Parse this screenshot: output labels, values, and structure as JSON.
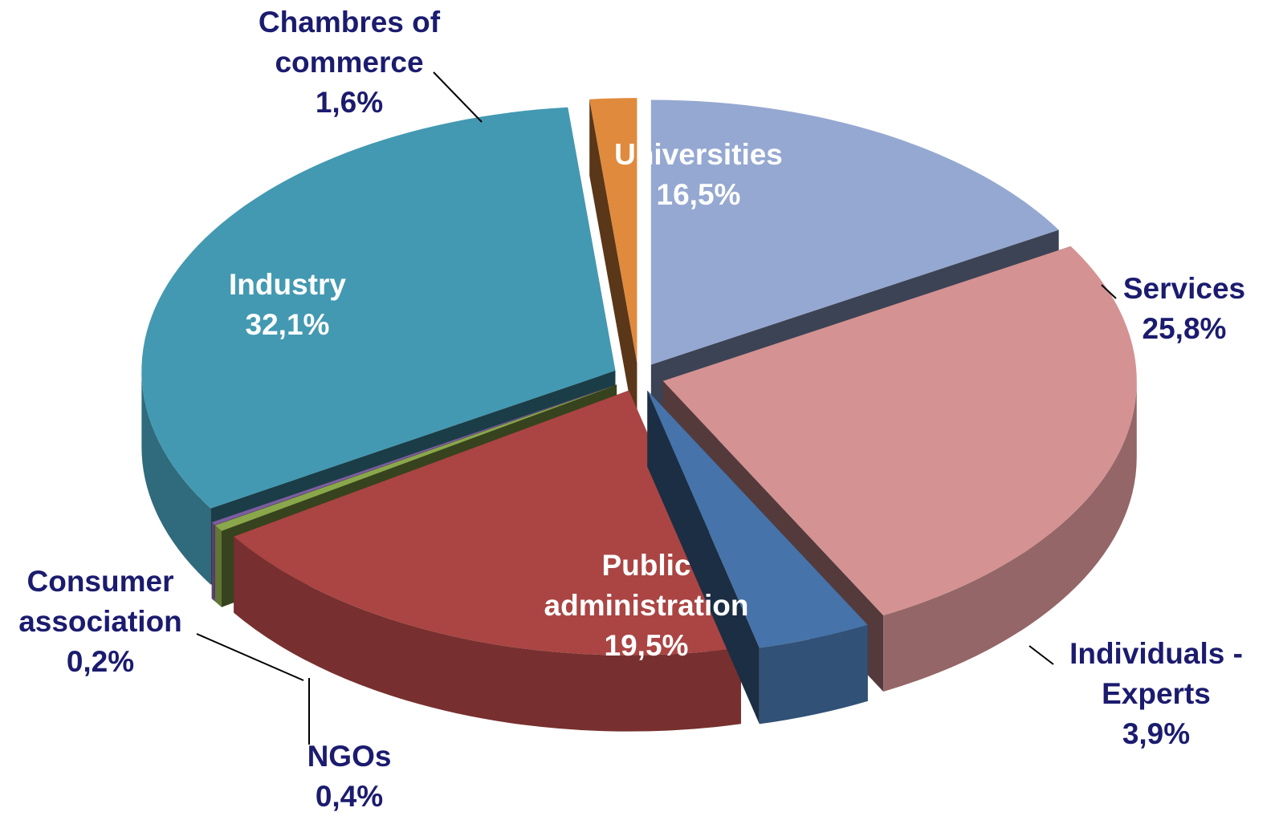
{
  "chart_data": {
    "type": "pie3d",
    "categories": [
      "Universities",
      "Services",
      "Individuals - Experts",
      "Public administration",
      "NGOs",
      "Consumer association",
      "Industry",
      "Chambres of commerce"
    ],
    "values": [
      16.5,
      25.8,
      3.9,
      19.5,
      0.4,
      0.2,
      32.1,
      1.6
    ],
    "value_labels": [
      "16,5%",
      "25,8%",
      "3,9%",
      "19,5%",
      "0,4%",
      "0,2%",
      "32,1%",
      "1,6%"
    ],
    "colors": [
      "#95a8d1",
      "#d49293",
      "#4673a9",
      "#aa4543",
      "#8aa84b",
      "#7b5d9e",
      "#4399b1",
      "#e08a3d"
    ]
  }
}
